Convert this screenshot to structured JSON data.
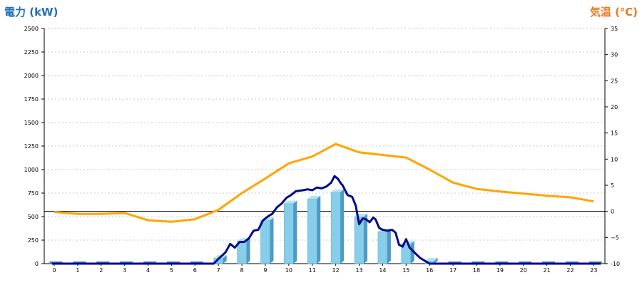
{
  "chart_data": {
    "type": "bar",
    "left_axis_title": "電力 (kW)",
    "right_axis_title": "気温 (℃)",
    "categories": [
      "0",
      "1",
      "2",
      "3",
      "4",
      "5",
      "6",
      "7",
      "8",
      "9",
      "10",
      "11",
      "12",
      "13",
      "14",
      "15",
      "16",
      "17",
      "18",
      "19",
      "20",
      "21",
      "22",
      "23"
    ],
    "ylim_left": [
      0,
      2500
    ],
    "yticks_left": [
      "0",
      "250",
      "500",
      "750",
      "1000",
      "1250",
      "1500",
      "1750",
      "2000",
      "2250",
      "2500"
    ],
    "ylim_right": [
      -10,
      35
    ],
    "yticks_right": [
      "-10",
      "−5",
      "0",
      "5",
      "10",
      "15",
      "20",
      "25",
      "30",
      "35"
    ],
    "grid": true,
    "bars": {
      "values": [
        0,
        0,
        0,
        0,
        0,
        0,
        0,
        60,
        240,
        460,
        640,
        690,
        760,
        500,
        340,
        210,
        30,
        0,
        0,
        0,
        0,
        0,
        0,
        0
      ],
      "color": "#87ceeb"
    },
    "power_line": {
      "color": "#000a8c",
      "points": [
        [
          -0.1,
          0
        ],
        [
          6.8,
          0
        ],
        [
          7.0,
          50
        ],
        [
          7.3,
          120
        ],
        [
          7.5,
          210
        ],
        [
          7.7,
          170
        ],
        [
          7.9,
          230
        ],
        [
          8.1,
          230
        ],
        [
          8.3,
          270
        ],
        [
          8.5,
          350
        ],
        [
          8.7,
          360
        ],
        [
          8.9,
          460
        ],
        [
          9.1,
          500
        ],
        [
          9.3,
          530
        ],
        [
          9.5,
          600
        ],
        [
          9.7,
          640
        ],
        [
          9.9,
          700
        ],
        [
          10.1,
          730
        ],
        [
          10.3,
          770
        ],
        [
          10.6,
          780
        ],
        [
          10.8,
          790
        ],
        [
          11.0,
          780
        ],
        [
          11.2,
          810
        ],
        [
          11.4,
          800
        ],
        [
          11.6,
          820
        ],
        [
          11.8,
          860
        ],
        [
          11.95,
          930
        ],
        [
          12.1,
          900
        ],
        [
          12.2,
          860
        ],
        [
          12.3,
          830
        ],
        [
          12.5,
          730
        ],
        [
          12.7,
          710
        ],
        [
          12.85,
          620
        ],
        [
          13.0,
          420
        ],
        [
          13.15,
          480
        ],
        [
          13.3,
          470
        ],
        [
          13.45,
          440
        ],
        [
          13.6,
          490
        ],
        [
          13.7,
          470
        ],
        [
          13.85,
          380
        ],
        [
          14.0,
          360
        ],
        [
          14.2,
          350
        ],
        [
          14.4,
          360
        ],
        [
          14.55,
          330
        ],
        [
          14.7,
          200
        ],
        [
          14.85,
          180
        ],
        [
          15.0,
          260
        ],
        [
          15.15,
          170
        ],
        [
          15.35,
          120
        ],
        [
          15.6,
          60
        ],
        [
          15.8,
          30
        ],
        [
          16.0,
          0
        ],
        [
          23.3,
          0
        ]
      ]
    },
    "temperature_line": {
      "color": "#ffa500",
      "values": [
        -0.1,
        -0.5,
        -0.5,
        -0.3,
        -1.7,
        -2.0,
        -1.5,
        0.3,
        3.5,
        6.3,
        9.2,
        10.5,
        12.9,
        11.3,
        10.8,
        10.3,
        8.0,
        5.5,
        4.3,
        3.8,
        3.4,
        3.0,
        2.7,
        1.9
      ]
    }
  }
}
